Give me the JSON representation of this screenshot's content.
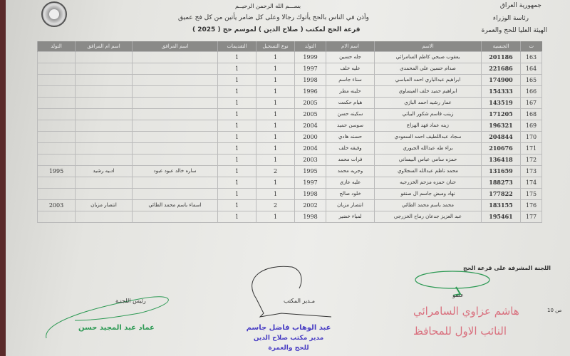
{
  "header": {
    "right": [
      "جمهورية العراق",
      "رئاسة الوزراء",
      "الهيئة العليا للحج والعمرة"
    ],
    "basmala": "بســـم الله الرحمن الرحيــم",
    "verse": "وأذن في الناس بالحج يأتوك رجالا وعلى كل ضامر يأتين من كل فج عميق",
    "lottery": "قرعة الحج لمكتب (   صلاح الدين  ) لموسم حج (  2025  )"
  },
  "table": {
    "columns": [
      "ت",
      "الجنسية",
      "الاسم",
      "اسم الام",
      "التولد",
      "نوع التسجيل",
      "التقديمات",
      "اسم المرافق",
      "اسم ام المرافق",
      "التولد"
    ],
    "rows": [
      [
        "163",
        "201186",
        "يعقوب صبحي كاظم السامرائي",
        "جله حسين",
        "1999",
        "1",
        "1",
        "",
        "",
        ""
      ],
      [
        "164",
        "221686",
        "صدام حسين علي المحمدي",
        "عليه خلف",
        "1997",
        "1",
        "1",
        "",
        "",
        ""
      ],
      [
        "165",
        "174900",
        "ابراهيم عبدالباري احمد العباسي",
        "سناء جاسم",
        "1998",
        "1",
        "1",
        "",
        "",
        ""
      ],
      [
        "166",
        "154333",
        "ابراهيم حميد خلف العيساوي",
        "حلينه مطر",
        "1996",
        "1",
        "1",
        "",
        "",
        ""
      ],
      [
        "167",
        "143519",
        "عمار رشيد احمد البازي",
        "هيام حكمت",
        "2005",
        "1",
        "1",
        "",
        "",
        ""
      ],
      [
        "168",
        "171205",
        "زينب قاسم شكور البياتي",
        "سكينه حسن",
        "2005",
        "1",
        "1",
        "",
        "",
        ""
      ],
      [
        "169",
        "196321",
        "زينه عماد فهد الهزاع",
        "سوسن حميد",
        "2004",
        "1",
        "1",
        "",
        "",
        ""
      ],
      [
        "170",
        "204844",
        "سجاد عبداللطيف احمد السعودي",
        "حسنه هادي",
        "2000",
        "1",
        "1",
        "",
        "",
        ""
      ],
      [
        "171",
        "210676",
        "براء طه عبدالله الجبوري",
        "وفيقه خلف",
        "2004",
        "1",
        "1",
        "",
        "",
        ""
      ],
      [
        "172",
        "136418",
        "حمزه سامي عباس البيساني",
        "فرات محمد",
        "2003",
        "1",
        "1",
        "",
        "",
        ""
      ],
      [
        "173",
        "131659",
        "محمد ناظم عبدالله السجلاوي",
        "وجريه محمد",
        "1995",
        "2",
        "1",
        "ساره خالد عبود عبود",
        "ادبيه رشيد",
        "1995"
      ],
      [
        "174",
        "188273",
        "حنان حمزه مزحم الخزرجيه",
        "عليه عازي",
        "1997",
        "1",
        "1",
        "",
        "",
        ""
      ],
      [
        "175",
        "177822",
        "نهاد ومبض جاسم ال صنقو",
        "خلود صالح",
        "1998",
        "1",
        "1",
        "",
        "",
        ""
      ],
      [
        "176",
        "183155",
        "محمد باسم محمد الطائي",
        "انتصار مزبان",
        "2002",
        "2",
        "1",
        "اسماء باسم محمد الطائي",
        "انتصار مزبان",
        "2003"
      ],
      [
        "177",
        "195461",
        "عبد العزيز جدعان رماح الخزرجي",
        "لمياء خضير",
        "1998",
        "1",
        "1",
        "",
        "",
        ""
      ]
    ]
  },
  "footer": {
    "committee": "اللجنة المشرفة على قرعة الحج",
    "member": "عضو",
    "page": "10 من",
    "office_manager": "مـدير المكتب",
    "chairman": "رئيس اللجنـة",
    "stamp_name": "عبد الوهاب فاضل جاسم",
    "stamp_title": "مدير مكتب صلاح الدين",
    "stamp_sub": "للحج والعمرة",
    "red_stamp_1": "هاشم عزاوي السامرائي",
    "red_stamp_2": "النائب الاول للمحافظ",
    "green_stamp": "عماد عبد المجيد حسن",
    "colors": {
      "blue_stamp": "#4a3fc4",
      "red_stamp": "#d9707e",
      "green_signature": "#2e9a55",
      "table_header": "#8a8a88"
    }
  }
}
